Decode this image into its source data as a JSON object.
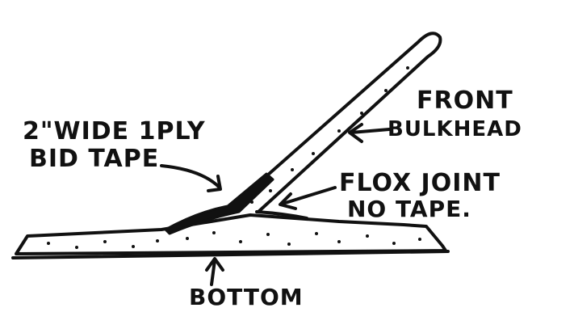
{
  "labels": {
    "tape_line1": "2\"WIDE 1PLY",
    "tape_line2": "BID TAPE",
    "front_line1": "FRONT",
    "front_line2": "BULKHEAD",
    "flox_line1": "FLOX JOINT",
    "flox_line2": "NO TAPE.",
    "bottom": "BOTTOM"
  },
  "colors": {
    "ink": "#111111",
    "paper": "#ffffff"
  }
}
